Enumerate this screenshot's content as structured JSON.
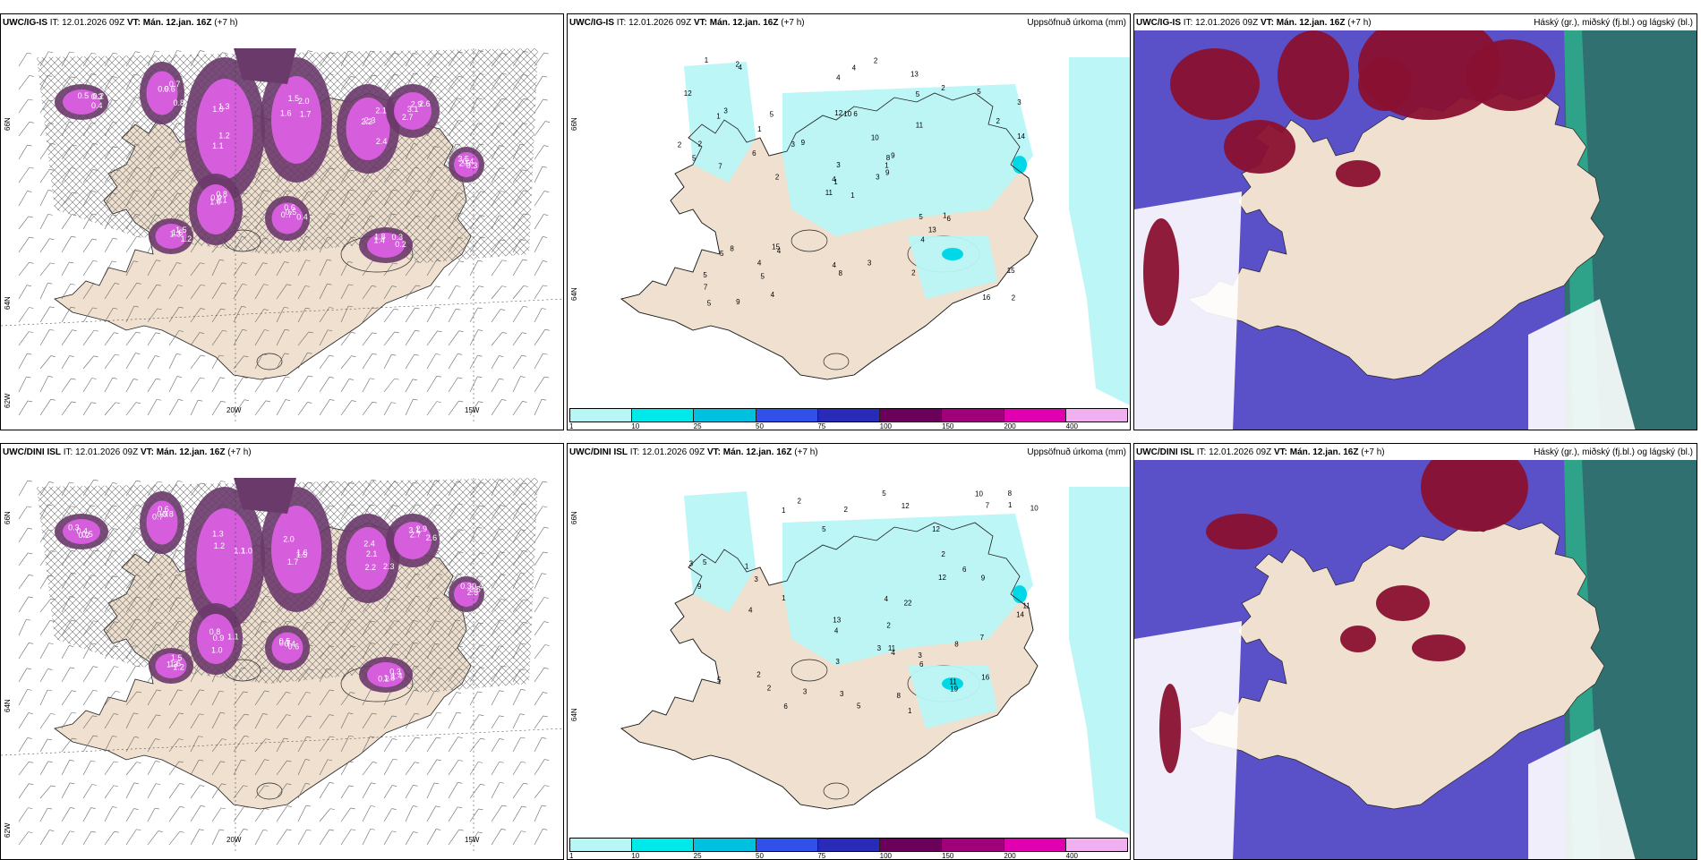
{
  "panels": [
    {
      "model": "UWC/IG-IS",
      "issue": "IT: 12.01.2026 09Z",
      "vt_label": "VT:",
      "vt_value": "Mán. 12.jan. 16Z",
      "lead": "(+7 h)",
      "right_title": "",
      "kind": "snow",
      "lon_labels": [
        "20W",
        "15W"
      ],
      "lat_labels": [
        "66N",
        "64N",
        "62W"
      ]
    },
    {
      "model": "UWC/IG-IS",
      "issue": "IT: 12.01.2026 09Z",
      "vt_label": "VT:",
      "vt_value": "Mán. 12.jan. 16Z",
      "lead": "(+7 h)",
      "right_title": "Uppsöfnuð úrkoma (mm)",
      "kind": "precip",
      "lat_labels": [
        "66N",
        "64N"
      ],
      "precip_values": [
        "1",
        "1",
        "1",
        "5",
        "8",
        "4",
        "13",
        "6",
        "5",
        "3",
        "4",
        "2",
        "7",
        "3",
        "11",
        "11",
        "9",
        "12",
        "10",
        "8",
        "9",
        "7",
        "5",
        "10",
        "9",
        "6",
        "3",
        "4",
        "5",
        "5",
        "14",
        "4",
        "4",
        "3",
        "5",
        "2",
        "15",
        "16",
        "15",
        "1",
        "2",
        "3",
        "6",
        "4",
        "4",
        "2",
        "1",
        "5",
        "8",
        "9",
        "5",
        "2",
        "12",
        "13",
        "2",
        "4",
        "2",
        "1",
        "3",
        "5",
        "4",
        "2",
        "2",
        "1"
      ]
    },
    {
      "model": "UWC/IG-IS",
      "issue": "IT: 12.01.2026 09Z",
      "vt_label": "VT:",
      "vt_value": "Mán. 12.jan. 16Z",
      "lead": "(+7 h)",
      "right_title": "Háský (gr.), miðský (fj.bl.) og lágský (bl.)",
      "kind": "cloud"
    },
    {
      "model": "UWC/DINI ISL",
      "issue": "IT: 12.01.2026 09Z",
      "vt_label": "VT:",
      "vt_value": "Mán. 12.jan. 16Z",
      "lead": "(+7 h)",
      "right_title": "",
      "kind": "snow",
      "lon_labels": [
        "20W",
        "15W"
      ],
      "lat_labels": [
        "66N",
        "64N",
        "62W"
      ]
    },
    {
      "model": "UWC/DINI ISL",
      "issue": "IT: 12.01.2026 09Z",
      "vt_label": "VT:",
      "vt_value": "Mán. 12.jan. 16Z",
      "lead": "(+7 h)",
      "right_title": "Uppsöfnuð úrkoma (mm)",
      "kind": "precip",
      "lat_labels": [
        "66N",
        "64N"
      ],
      "precip_values": [
        "1",
        "1",
        "2",
        "1",
        "6",
        "8",
        "14",
        "1",
        "4",
        "2",
        "5",
        "3",
        "13",
        "11",
        "12",
        "10",
        "9",
        "7",
        "8",
        "9",
        "11",
        "4",
        "6",
        "19",
        "22",
        "2",
        "4",
        "3",
        "5",
        "5",
        "6",
        "8",
        "12",
        "3",
        "2",
        "3",
        "5",
        "5",
        "11",
        "3",
        "2",
        "4",
        "10",
        "16",
        "12",
        "7",
        "3",
        "3",
        "2",
        "1"
      ]
    },
    {
      "model": "UWC/DINI ISL",
      "issue": "IT: 12.01.2026 09Z",
      "vt_label": "VT:",
      "vt_value": "Mán. 12.jan. 16Z",
      "lead": "(+7 h)",
      "right_title": "Háský (gr.), miðský (fj.bl.) og lágský (bl.)",
      "kind": "cloud"
    }
  ],
  "colorbar": {
    "ticks": [
      "1",
      "10",
      "25",
      "50",
      "75",
      "100",
      "150",
      "200",
      "400"
    ],
    "colors": [
      "#b8f5f5",
      "#00e8e8",
      "#00c0e0",
      "#3050e8",
      "#2a2ab8",
      "#6a005a",
      "#a0007a",
      "#e000b0",
      "#f0b0f0"
    ]
  },
  "snow_values": [
    "0.2",
    "0.3",
    "0.4",
    "0.5",
    "0.6",
    "0.7",
    "0.8",
    "0.9",
    "1.0",
    "1.1",
    "1.2",
    "1.3",
    "1.5",
    "1.6",
    "1.7",
    "2.0",
    "2.1",
    "2.2",
    "2.3",
    "2.4",
    "2.6",
    "2.7",
    "2.9",
    "3.1",
    "3.5",
    "2.5",
    "0.4",
    "0.3",
    "1.8",
    "1.4"
  ],
  "colors": {
    "land": "#efe0cf",
    "sea": "#ffffff",
    "snow_dark": "#6a3a6a",
    "snow_bright": "#e060e8",
    "precip_light": "#b8f5f5",
    "precip_mid": "#00d8e8",
    "cloud_high_red": "#8a1030",
    "cloud_mid_blue": "#5a50c8",
    "cloud_low_green": "#30b090",
    "cloud_teal": "#307070"
  }
}
